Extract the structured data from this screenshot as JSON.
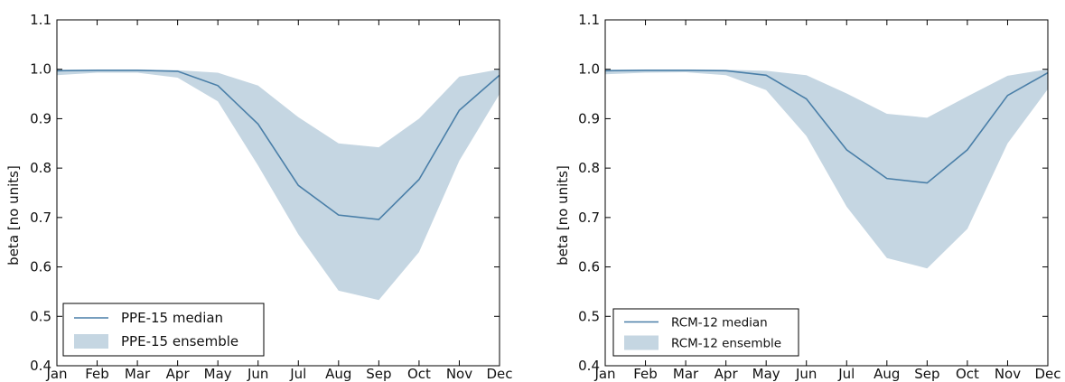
{
  "chart_data": [
    {
      "type": "area",
      "months": [
        "Jan",
        "Feb",
        "Mar",
        "Apr",
        "May",
        "Jun",
        "Jul",
        "Aug",
        "Sep",
        "Oct",
        "Nov",
        "Dec"
      ],
      "ylabel": "beta [no units]",
      "ylim": [
        0.4,
        1.1
      ],
      "yticks": [
        "0.4",
        "0.5",
        "0.6",
        "0.7",
        "0.8",
        "0.9",
        "1.0",
        "1.1"
      ],
      "grid": false,
      "legend_position": "lower-left",
      "colors": {
        "median": "#4a7fa8",
        "band": "#c5d6e2"
      },
      "series": [
        {
          "name": "PPE-15 median",
          "kind": "line",
          "values": [
            0.997,
            0.998,
            0.998,
            0.996,
            0.967,
            0.889,
            0.765,
            0.705,
            0.696,
            0.777,
            0.917,
            0.988
          ]
        },
        {
          "name": "PPE-15 ensemble",
          "kind": "band",
          "lower": [
            0.988,
            0.993,
            0.993,
            0.983,
            0.935,
            0.805,
            0.666,
            0.552,
            0.533,
            0.63,
            0.815,
            0.95
          ],
          "upper": [
            0.999,
            0.999,
            0.999,
            0.998,
            0.993,
            0.967,
            0.903,
            0.85,
            0.842,
            0.9,
            0.985,
            1.0
          ]
        }
      ]
    },
    {
      "type": "area",
      "months": [
        "Jan",
        "Feb",
        "Mar",
        "Apr",
        "May",
        "Jun",
        "Jul",
        "Aug",
        "Sep",
        "Oct",
        "Nov",
        "Dec"
      ],
      "ylabel": "beta [no units]",
      "ylim": [
        0.4,
        1.1
      ],
      "yticks": [
        "0.4",
        "0.5",
        "0.6",
        "0.7",
        "0.8",
        "0.9",
        "1.0",
        "1.1"
      ],
      "grid": false,
      "legend_position": "lower-left",
      "colors": {
        "median": "#4a7fa8",
        "band": "#c5d6e2"
      },
      "series": [
        {
          "name": "RCM-12 median",
          "kind": "line",
          "values": [
            0.997,
            0.998,
            0.998,
            0.997,
            0.988,
            0.94,
            0.837,
            0.779,
            0.77,
            0.837,
            0.947,
            0.993
          ]
        },
        {
          "name": "RCM-12 ensemble",
          "kind": "band",
          "lower": [
            0.99,
            0.993,
            0.994,
            0.988,
            0.958,
            0.865,
            0.722,
            0.618,
            0.597,
            0.677,
            0.85,
            0.96
          ],
          "upper": [
            0.999,
            0.999,
            0.999,
            0.999,
            0.997,
            0.988,
            0.951,
            0.91,
            0.902,
            0.945,
            0.987,
            1.0
          ]
        }
      ]
    }
  ]
}
